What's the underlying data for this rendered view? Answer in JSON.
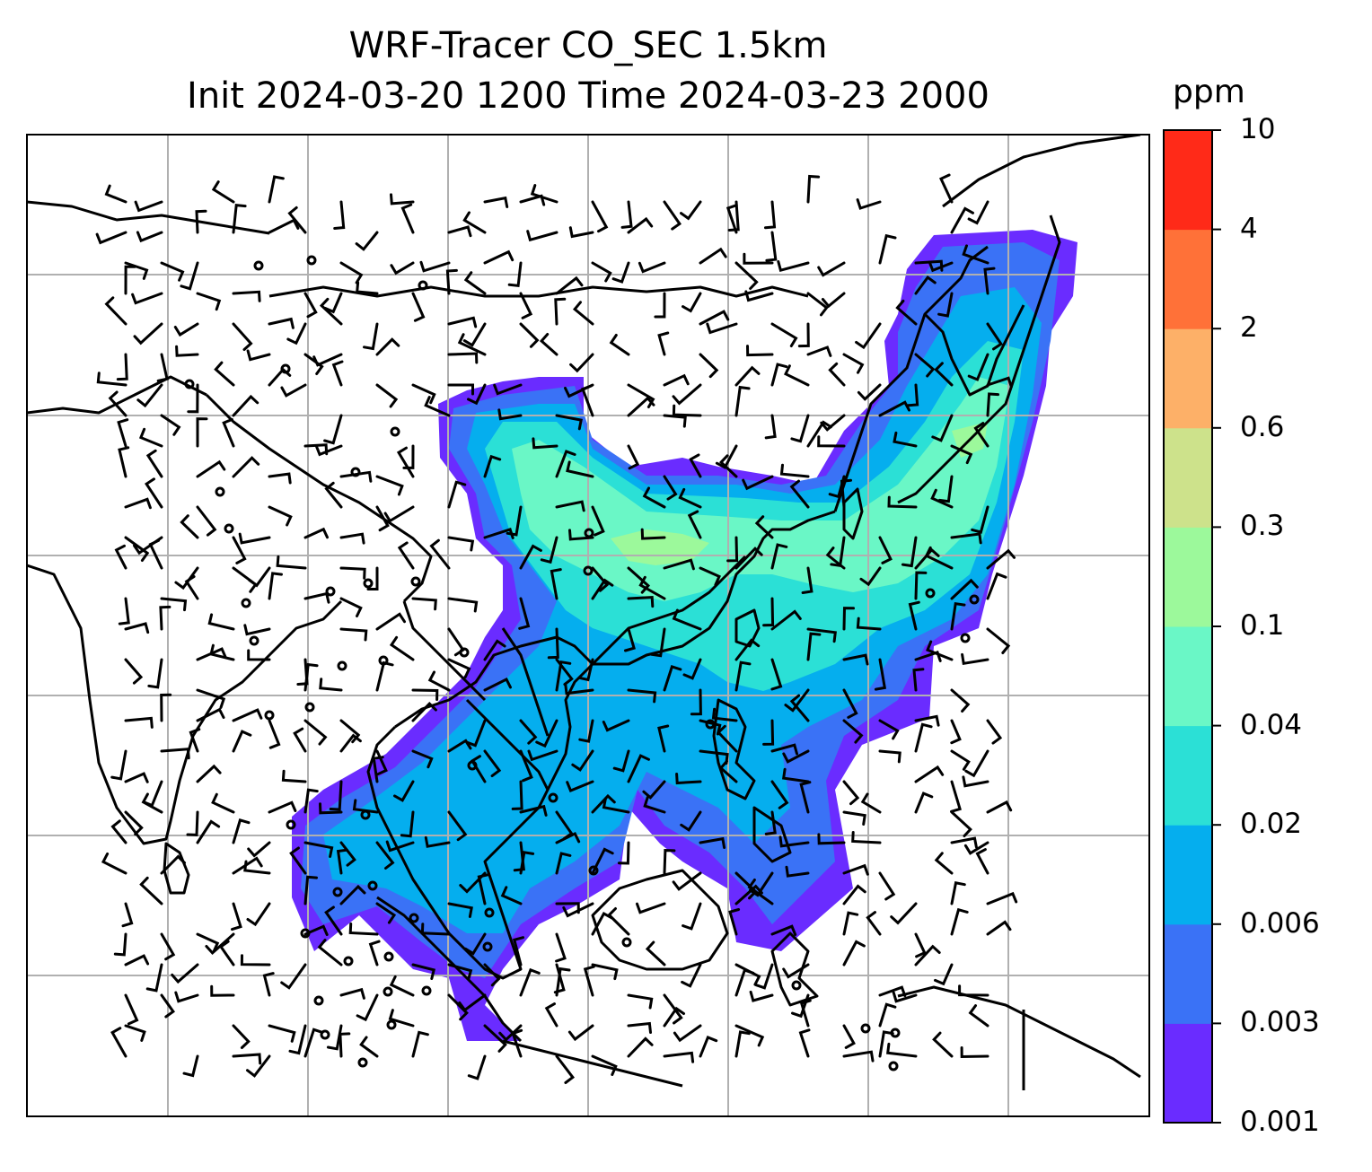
{
  "title_line1": "WRF-Tracer CO_SEC 1.5km",
  "title_line2": "Init 2024-03-20 1200 Time 2024-03-23 2000",
  "colorbar": {
    "units": "ppm",
    "levels": [
      "0.001",
      "0.003",
      "0.006",
      "0.02",
      "0.04",
      "0.1",
      "0.3",
      "0.6",
      "2",
      "4",
      "10"
    ],
    "colors": [
      "#6a2cff",
      "#3a72f6",
      "#05aeee",
      "#2be0d6",
      "#6af7c6",
      "#9cf99b",
      "#cde28b",
      "#fdb068",
      "#ff7138",
      "#ff2a18"
    ]
  },
  "map": {
    "projection": "lat-lon",
    "gridlines": true,
    "features": [
      "coastlines",
      "borders",
      "wind-barbs"
    ],
    "field": "CO_SEC tracer concentration"
  }
}
